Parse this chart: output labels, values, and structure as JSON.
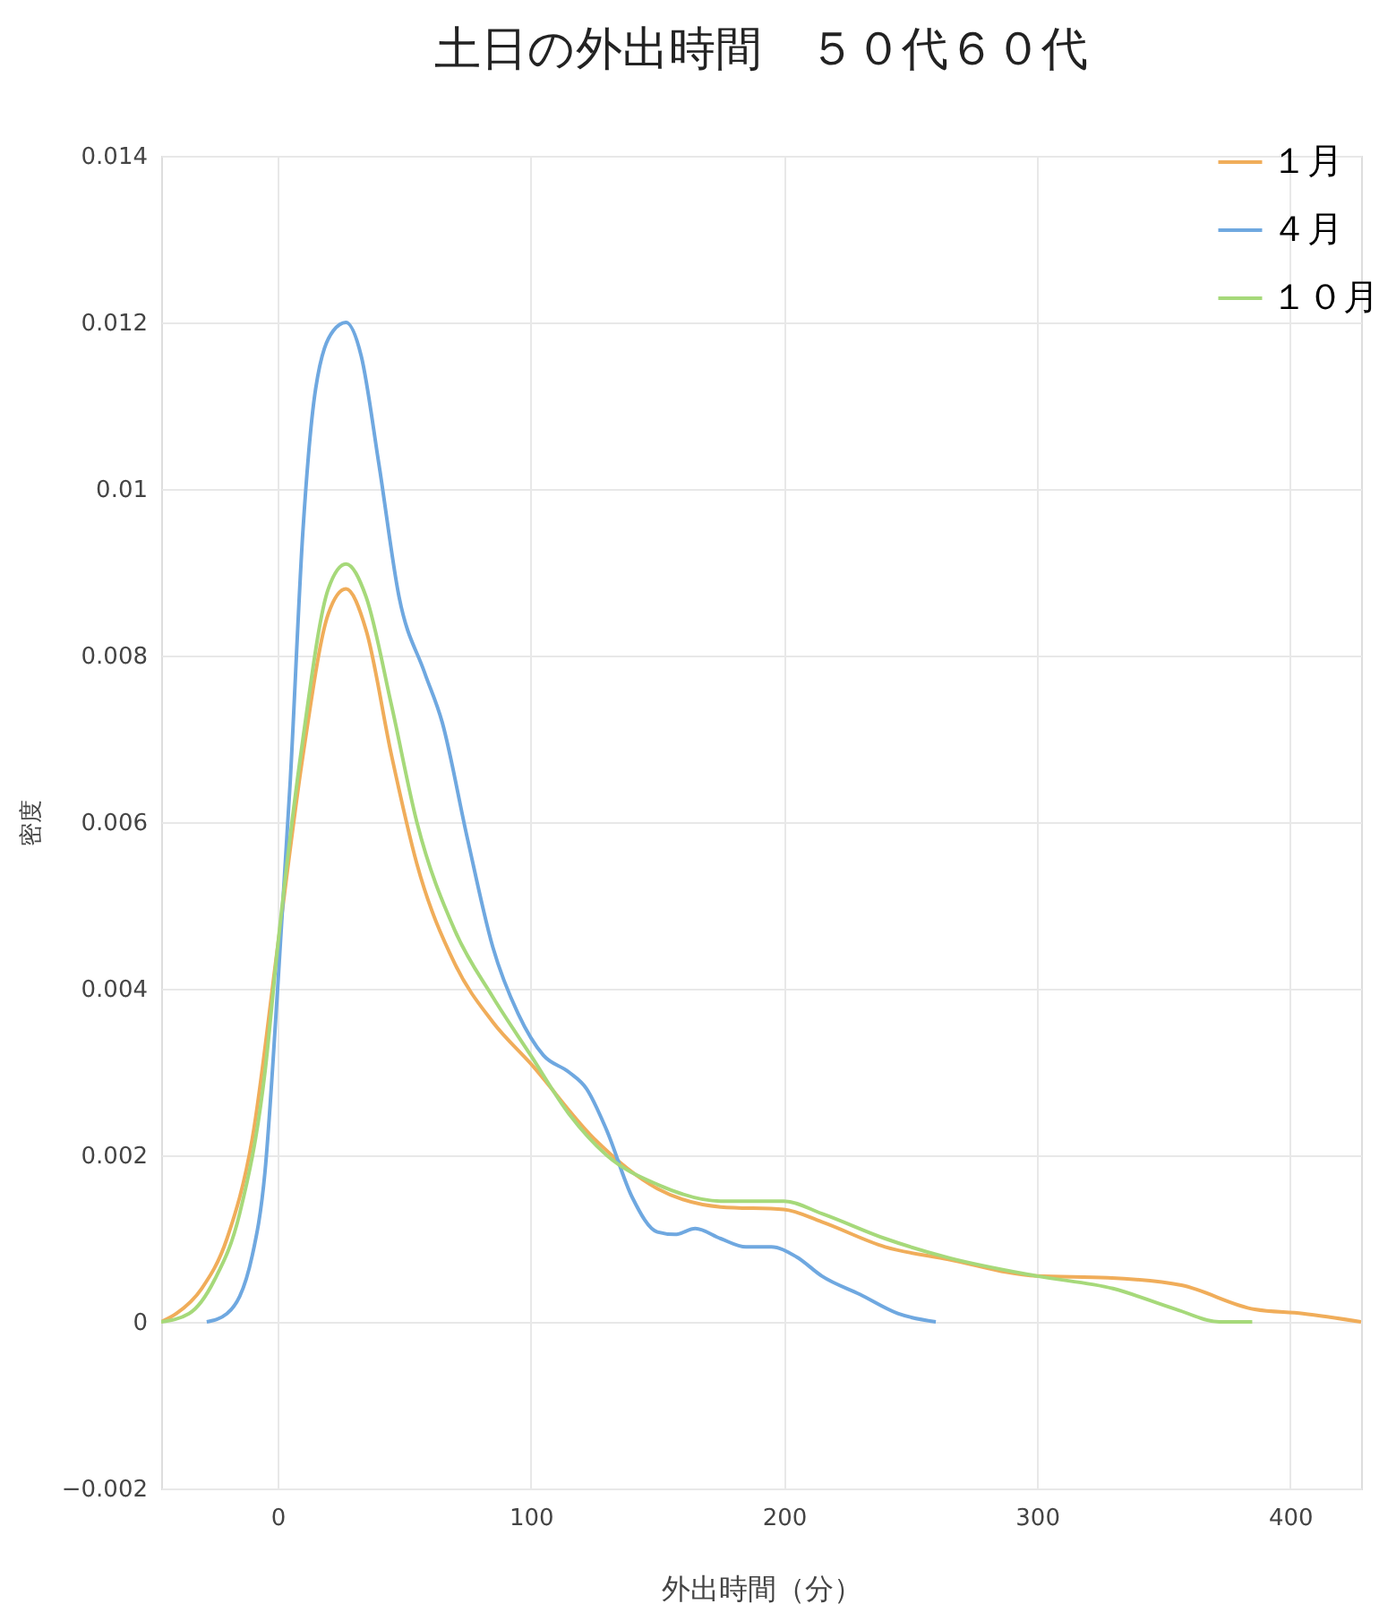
{
  "chart_data": {
    "type": "line",
    "title": "土日の外出時間　５０代６０代",
    "xlabel": "外出時間（分）",
    "ylabel": "密度",
    "xlim": [
      -46,
      428
    ],
    "xticks": [
      0,
      100,
      200,
      300,
      400
    ],
    "ylim": [
      -0.002,
      0.014
    ],
    "yticks": [
      {
        "value": -0.002,
        "label": "−0.002"
      },
      0,
      0.002,
      0.004,
      0.006,
      0.008,
      0.01,
      0.012,
      0.014
    ],
    "grid": true,
    "legend": "top right",
    "line_style": "solid",
    "marker": "none",
    "series": [
      {
        "name": "１月",
        "color": "#f0ad5a",
        "x": [
          -46,
          -40,
          -30,
          -20,
          -10,
          0,
          10,
          20,
          27,
          35,
          45,
          55,
          70,
          85,
          100,
          125,
          150,
          175,
          200,
          215,
          240,
          265,
          300,
          328,
          357,
          386,
          405,
          428
        ],
        "values": [
          0,
          0.0001,
          0.0004,
          0.001,
          0.0022,
          0.0045,
          0.0068,
          0.0085,
          0.0088,
          0.0083,
          0.0068,
          0.0055,
          0.0043,
          0.0036,
          0.0031,
          0.0022,
          0.0016,
          0.00138,
          0.00135,
          0.0012,
          0.0009,
          0.00075,
          0.00055,
          0.00053,
          0.00044,
          0.00015,
          0.0001,
          0
        ]
      },
      {
        "name": "４月",
        "color": "#6fa8e0",
        "x": [
          -28,
          -20,
          -10,
          -5,
          0,
          5,
          10,
          15,
          22,
          27,
          33,
          40,
          48,
          58,
          65,
          75,
          85,
          95,
          105,
          115,
          122,
          130,
          140,
          150,
          157,
          165,
          175,
          185,
          195,
          205,
          215,
          230,
          245,
          260
        ],
        "values": [
          0,
          0.0001,
          0.0008,
          0.0018,
          0.004,
          0.0065,
          0.0095,
          0.0112,
          0.0119,
          0.012,
          0.0116,
          0.0103,
          0.0087,
          0.0078,
          0.0072,
          0.0058,
          0.0045,
          0.0037,
          0.0032,
          0.003,
          0.0028,
          0.0023,
          0.0015,
          0.00108,
          0.00105,
          0.00112,
          0.001,
          0.0009,
          0.0009,
          0.00078,
          0.00055,
          0.00033,
          0.0001,
          0
        ]
      },
      {
        "name": "１０月",
        "color": "#a6d97a",
        "x": [
          -46,
          -35,
          -25,
          -15,
          -5,
          0,
          10,
          20,
          27,
          35,
          45,
          55,
          70,
          85,
          100,
          115,
          130,
          150,
          175,
          200,
          215,
          240,
          265,
          300,
          330,
          355,
          372,
          385
        ],
        "values": [
          0,
          0.0001,
          0.0005,
          0.0013,
          0.003,
          0.0045,
          0.007,
          0.0088,
          0.0091,
          0.0087,
          0.0074,
          0.006,
          0.0047,
          0.0039,
          0.0032,
          0.0025,
          0.002,
          0.00165,
          0.00145,
          0.00145,
          0.0013,
          0.001,
          0.00077,
          0.00055,
          0.0004,
          0.00015,
          0,
          0
        ]
      }
    ]
  }
}
